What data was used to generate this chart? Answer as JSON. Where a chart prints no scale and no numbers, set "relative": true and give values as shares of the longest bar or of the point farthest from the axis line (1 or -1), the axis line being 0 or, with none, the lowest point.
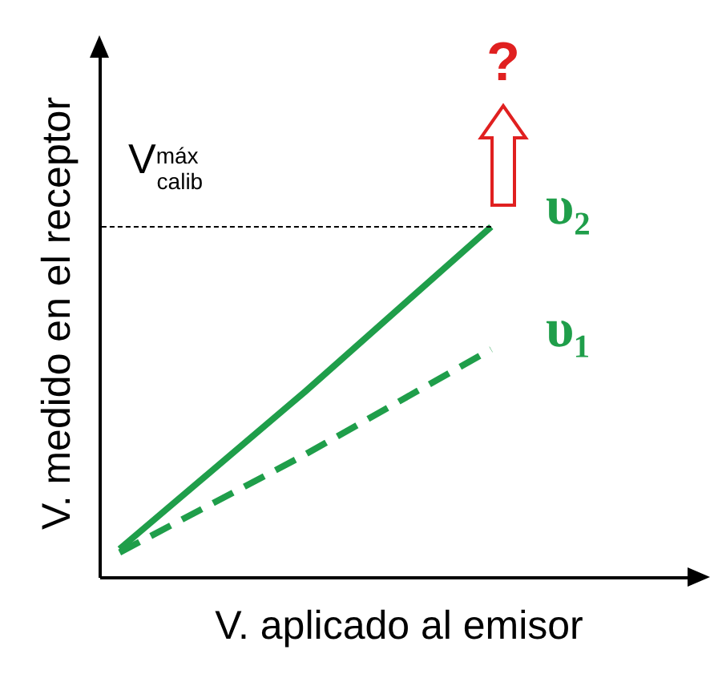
{
  "chart_data": {
    "type": "line",
    "relative": true,
    "xlabel": "V. aplicado al emisor",
    "ylabel": "V. medido en el receptor",
    "categories": [
      null,
      null,
      null,
      null
    ],
    "series": [
      {
        "name": "υ₂",
        "color": "#1f9e4a",
        "line_style": "solid",
        "values": [
          0.08,
          0.53,
          1,
          null
        ]
      },
      {
        "name": "υ₁",
        "color": "#1f9e4a",
        "line_style": "dashed",
        "values": [
          0.07,
          0.35,
          0.65,
          null
        ]
      }
    ],
    "ref_lines": [
      {
        "axis": "y",
        "value": 1,
        "label": "V$^{máx}$$_{calib}$",
        "line_style": "dashed",
        "color": "#000000"
      }
    ],
    "annotations": [
      "?"
    ],
    "grid": false,
    "legend": false,
    "marker": "none"
  }
}
